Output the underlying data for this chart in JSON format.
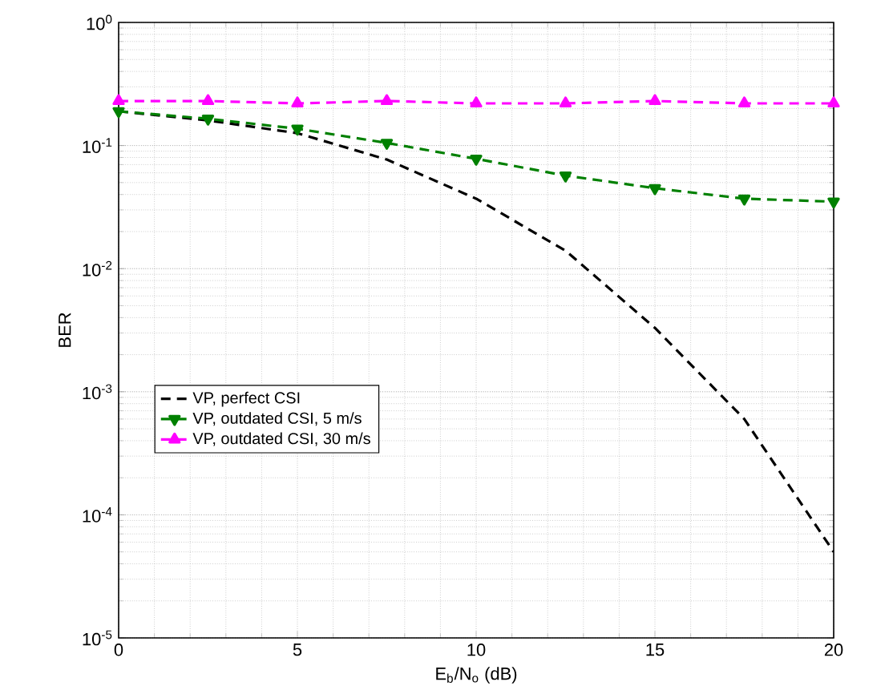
{
  "chart_data": {
    "type": "line",
    "xlabel": "E$_{b}$/N$_{o}$ (dB)",
    "ylabel": "BER",
    "x": [
      0,
      2.5,
      5,
      7.5,
      10,
      12.5,
      15,
      17.5,
      20
    ],
    "series": [
      {
        "name": "VP, perfect CSI",
        "color": "#000000",
        "marker": "none",
        "values": [
          0.19,
          0.16,
          0.126,
          0.077,
          0.037,
          0.014,
          0.0033,
          0.0006,
          5e-05
        ]
      },
      {
        "name": "VP, outdated CSI, 5 m/s",
        "color": "#008000",
        "marker": "triangle_down",
        "values": [
          0.19,
          0.165,
          0.137,
          0.105,
          0.078,
          0.057,
          0.045,
          0.037,
          0.035
        ]
      },
      {
        "name": "VP, outdated CSI, 30 m/s",
        "color": "#ff00ff",
        "marker": "triangle",
        "values": [
          0.23,
          0.23,
          0.22,
          0.23,
          0.22,
          0.22,
          0.23,
          0.22,
          0.22
        ]
      }
    ],
    "xlim": [
      0,
      20
    ],
    "ylim": [
      1e-05,
      1
    ],
    "xticks": [
      0,
      5,
      10,
      15,
      20
    ],
    "yticks": [
      {
        "value": 1e-05,
        "label": "10$^{-5}$"
      },
      {
        "value": 0.0001,
        "label": "10$^{-4}$"
      },
      {
        "value": 0.001,
        "label": "10$^{-3}$"
      },
      {
        "value": 0.01,
        "label": "10$^{-2}$"
      },
      {
        "value": 0.1,
        "label": "10$^{-1}$"
      },
      {
        "value": 1,
        "label": "10$^{0}$"
      }
    ],
    "log": "y",
    "grid": true,
    "legend": "left",
    "line_style": "dashed"
  }
}
